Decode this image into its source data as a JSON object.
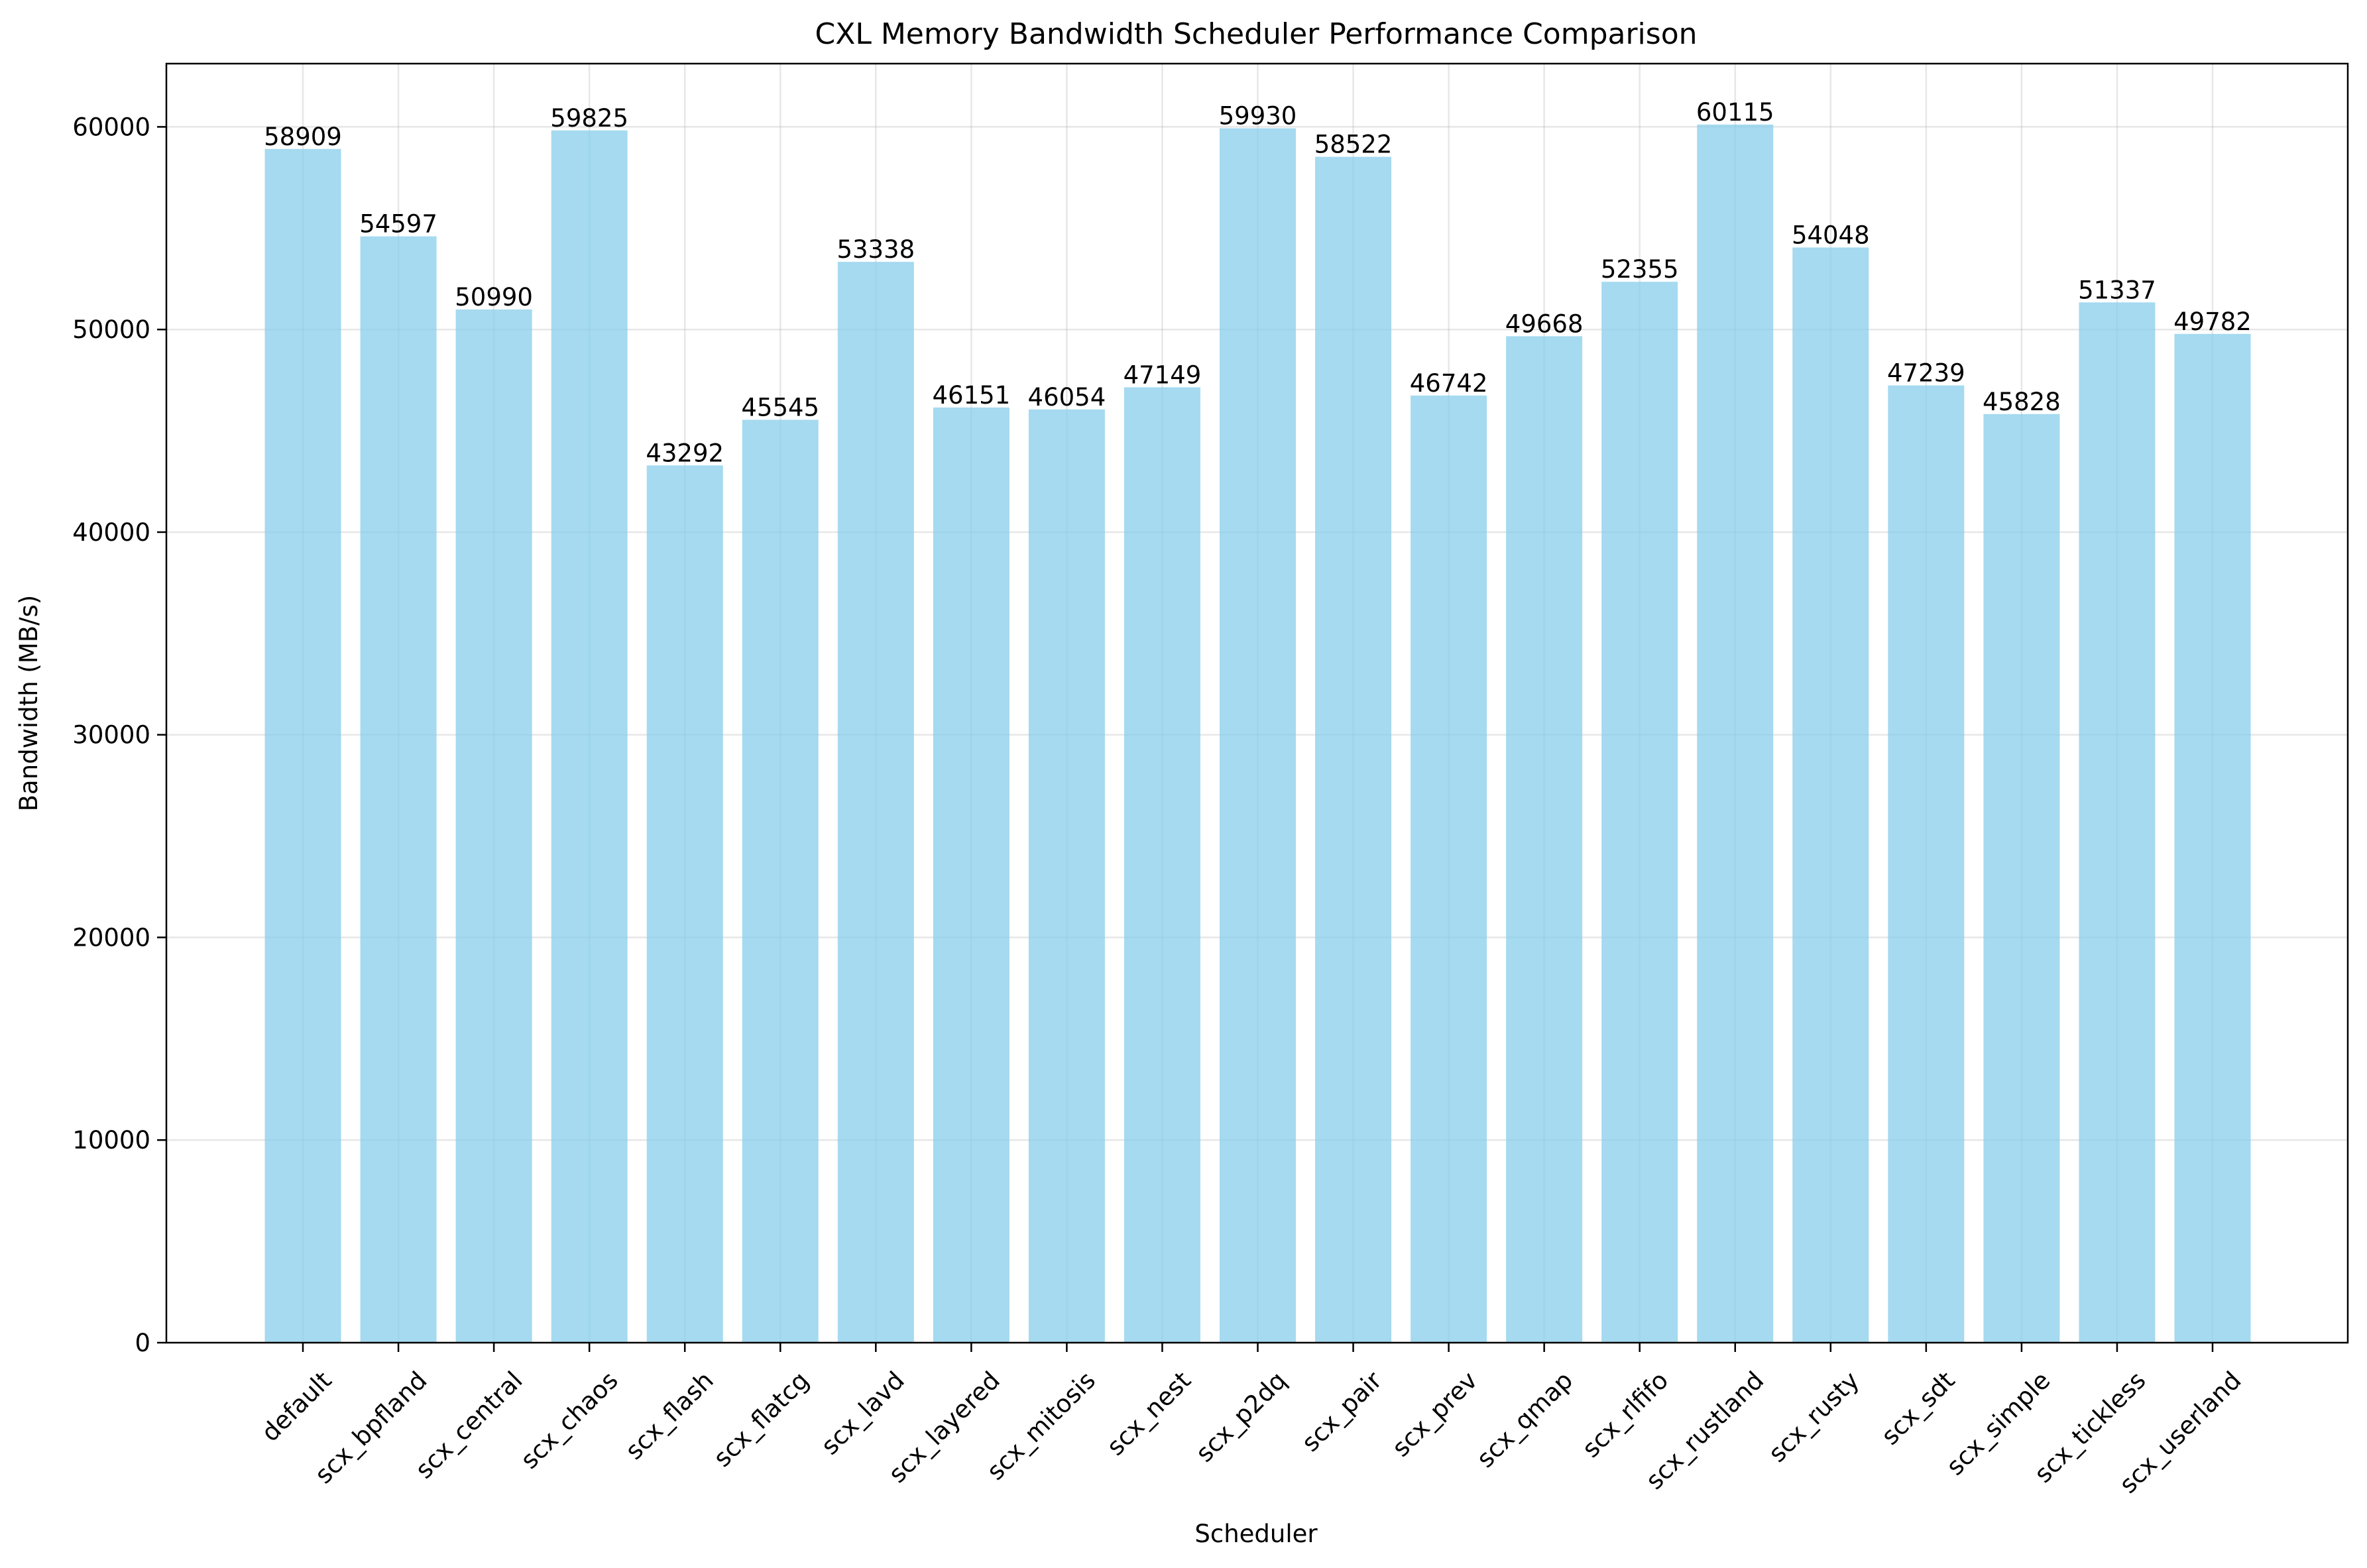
{
  "chart_data": {
    "type": "bar",
    "title": "CXL Memory Bandwidth Scheduler Performance Comparison",
    "xlabel": "Scheduler",
    "ylabel": "Bandwidth (MB/s)",
    "categories": [
      "default",
      "scx_bpfland",
      "scx_central",
      "scx_chaos",
      "scx_flash",
      "scx_flatcg",
      "scx_lavd",
      "scx_layered",
      "scx_mitosis",
      "scx_nest",
      "scx_p2dq",
      "scx_pair",
      "scx_prev",
      "scx_qmap",
      "scx_rlfifo",
      "scx_rustland",
      "scx_rusty",
      "scx_sdt",
      "scx_simple",
      "scx_tickless",
      "scx_userland"
    ],
    "values": [
      58909,
      54597,
      50990,
      59825,
      43292,
      45545,
      53338,
      46151,
      46054,
      47149,
      59930,
      58522,
      46742,
      49668,
      52355,
      60115,
      54048,
      47239,
      45828,
      51337,
      49782
    ],
    "value_labels": [
      "58909",
      "54597",
      "50990",
      "59825",
      "43292",
      "45545",
      "53338",
      "46151",
      "46054",
      "47149",
      "59930",
      "58522",
      "46742",
      "49668",
      "52355",
      "60115",
      "54048",
      "47239",
      "45828",
      "51337",
      "49782"
    ],
    "ylim": [
      0,
      63121
    ],
    "yticks": [
      0,
      10000,
      20000,
      30000,
      40000,
      50000,
      60000
    ],
    "ytick_labels": [
      "0",
      "10000",
      "20000",
      "30000",
      "40000",
      "50000",
      "60000"
    ],
    "grid": true,
    "bar_color": "#87ceeb",
    "bar_alpha": 0.75
  }
}
